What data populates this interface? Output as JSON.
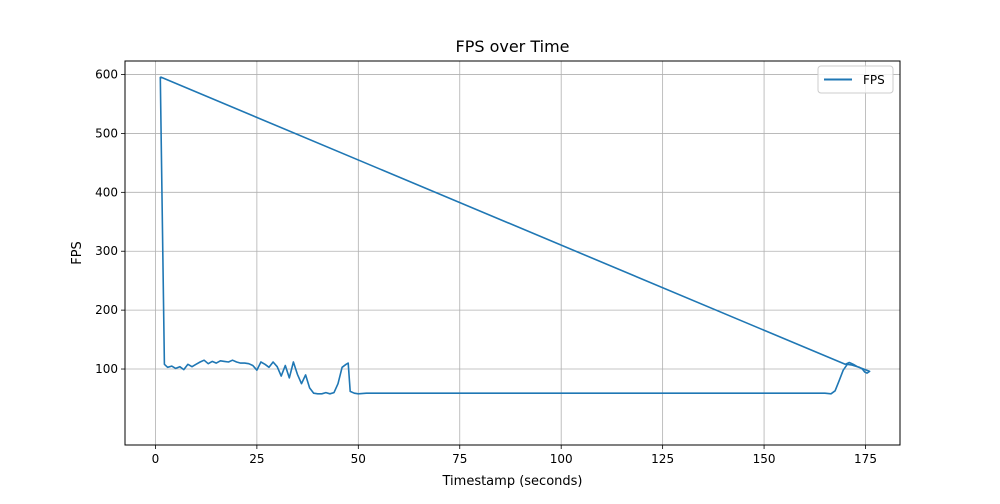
{
  "chart_data": {
    "type": "line",
    "title": "FPS over Time",
    "xlabel": "Timestamp (seconds)",
    "ylabel": "FPS",
    "xlim": [
      -7.5,
      183.5
    ],
    "ylim": [
      -29,
      623
    ],
    "grid": true,
    "legend_position": "top-right",
    "xticks": [
      0,
      25,
      50,
      75,
      100,
      125,
      150,
      175
    ],
    "yticks": [
      100,
      200,
      300,
      400,
      500,
      600
    ],
    "series": [
      {
        "name": "FPS",
        "color": "#1f77b4",
        "x": [
          1.2,
          2.2,
          3.0,
          4.0,
          5.0,
          6.0,
          7.0,
          8.0,
          9.0,
          10.0,
          11.0,
          12.0,
          13.0,
          14.0,
          15.0,
          16.0,
          17.0,
          18.0,
          19.0,
          20.0,
          21.0,
          22.0,
          23.0,
          24.0,
          25.0,
          26.0,
          27.0,
          28.0,
          29.0,
          30.0,
          31.0,
          32.0,
          33.0,
          34.0,
          35.0,
          36.0,
          37.0,
          38.0,
          39.0,
          40.0,
          41.0,
          42.0,
          43.0,
          44.0,
          45.0,
          46.0,
          47.0,
          47.5,
          48.0,
          49.0,
          50.0,
          52.0,
          60.0,
          70.0,
          80.0,
          90.0,
          100.0,
          110.0,
          120.0,
          130.0,
          140.0,
          150.0,
          160.0,
          165.0,
          166.5,
          167.5,
          168.5,
          169.5,
          170.5,
          171.5,
          172.5,
          173.5,
          174.2,
          174.8,
          175.4,
          176.0,
          174.5,
          173.0,
          172.0,
          171.0,
          170.0,
          1.2
        ],
        "y": [
          596,
          108,
          103,
          105,
          101,
          104,
          99,
          108,
          104,
          108,
          112,
          115,
          109,
          113,
          110,
          114,
          113,
          112,
          115,
          112,
          110,
          110,
          109,
          106,
          98,
          112,
          108,
          103,
          112,
          104,
          88,
          106,
          85,
          112,
          91,
          75,
          90,
          68,
          59,
          58,
          58,
          60,
          58,
          60,
          75,
          103,
          108,
          110,
          62,
          59,
          58,
          59,
          59,
          59,
          59,
          59,
          59,
          59,
          59,
          59,
          59,
          59,
          59,
          59,
          58,
          63,
          80,
          98,
          108,
          107,
          105,
          103,
          100,
          95,
          93,
          96,
          100,
          104,
          108,
          111,
          108,
          596
        ]
      }
    ]
  }
}
